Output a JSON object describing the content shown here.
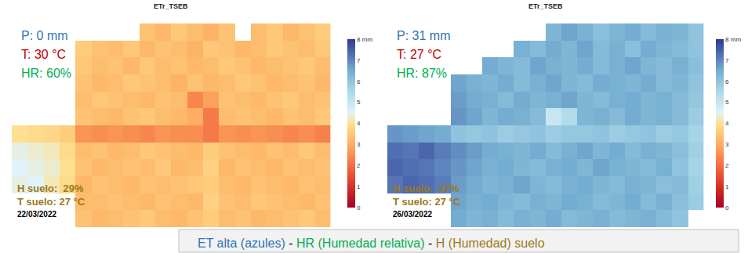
{
  "chart_data": [
    {
      "type": "heatmap",
      "title": "ETr_TSEB",
      "tick_labels": false,
      "zlim": [
        0,
        8
      ],
      "zticks": [
        0,
        1,
        2,
        3,
        4,
        5,
        6,
        7,
        {
          "value": 8,
          "label": "8 mm"
        }
      ],
      "annotations": [
        {
          "text": "P: 0 mm",
          "color": "#2e75b6"
        },
        {
          "text": "T: 30 °C",
          "color": "#c00000"
        },
        {
          "text": "HR: 60%",
          "color": "#00b050"
        },
        {
          "text": "H suelo:  29%",
          "color": "#9c7a1a"
        },
        {
          "text": "T suelo: 27 °C",
          "color": "#9c7a1a"
        },
        {
          "text": "22/03/2022",
          "color": "#000000"
        }
      ],
      "z": [
        [
          null,
          null,
          null,
          null,
          null,
          null,
          null,
          null,
          3.4,
          3.2,
          3.5,
          3.3,
          3.1,
          3.4,
          null,
          3.3,
          3.5,
          3.2,
          3.4,
          3.6
        ],
        [
          null,
          null,
          null,
          null,
          3.6,
          3.4,
          3.3,
          3.5,
          3.2,
          3.4,
          3.3,
          3.1,
          3.5,
          3.4,
          3.2,
          3.3,
          3.5,
          3.4,
          3.3,
          3.5
        ],
        [
          null,
          null,
          null,
          null,
          3.5,
          3.3,
          3.4,
          3.2,
          3.5,
          3.3,
          3.4,
          3.2,
          3.3,
          3.5,
          3.4,
          3.2,
          3.3,
          3.4,
          3.5,
          3.3
        ],
        [
          null,
          null,
          null,
          null,
          3.4,
          3.2,
          3.3,
          3.5,
          3.4,
          3.3,
          3.1,
          3.4,
          3.2,
          3.3,
          3.5,
          3.4,
          3.2,
          3.3,
          3.4,
          3.2
        ],
        [
          null,
          null,
          null,
          null,
          3.3,
          3.5,
          3.4,
          3.3,
          3.2,
          3.4,
          3.3,
          2.4,
          2.8,
          3.4,
          3.3,
          3.2,
          3.4,
          3.5,
          3.3,
          3.4
        ],
        [
          null,
          null,
          null,
          null,
          3.4,
          3.3,
          3.2,
          3.4,
          3.5,
          3.3,
          3.2,
          3.0,
          2.2,
          3.3,
          3.4,
          3.3,
          3.2,
          3.4,
          3.3,
          3.5
        ],
        [
          4.0,
          3.9,
          3.8,
          3.6,
          2.6,
          2.5,
          2.6,
          2.5,
          2.4,
          2.6,
          2.5,
          2.5,
          2.2,
          2.6,
          2.5,
          2.6,
          2.5,
          2.4,
          2.5,
          2.3
        ],
        [
          4.4,
          4.3,
          4.2,
          3.9,
          3.3,
          3.4,
          3.2,
          3.3,
          3.5,
          3.4,
          3.3,
          3.2,
          3.6,
          3.4,
          3.3,
          3.2,
          3.4,
          3.3,
          3.5,
          3.3
        ],
        [
          4.5,
          4.4,
          4.3,
          4.0,
          3.4,
          3.2,
          3.3,
          3.4,
          3.3,
          3.5,
          3.2,
          3.3,
          3.7,
          3.2,
          3.4,
          3.3,
          3.2,
          3.4,
          3.3,
          3.4
        ],
        [
          4.4,
          4.5,
          4.2,
          3.9,
          3.2,
          3.4,
          3.3,
          3.2,
          3.4,
          3.3,
          3.4,
          3.5,
          3.6,
          3.3,
          3.2,
          3.4,
          3.3,
          3.2,
          3.4,
          3.3
        ],
        [
          null,
          null,
          null,
          null,
          3.3,
          3.3,
          3.4,
          3.3,
          3.2,
          3.4,
          3.3,
          3.2,
          3.7,
          3.4,
          3.3,
          3.5,
          3.4,
          3.3,
          3.2,
          3.4
        ],
        [
          null,
          null,
          null,
          null,
          3.4,
          3.2,
          3.3,
          3.4,
          3.5,
          3.3,
          3.2,
          3.4,
          3.6,
          3.3,
          3.4,
          3.2,
          3.3,
          3.4,
          3.5,
          3.3
        ]
      ]
    },
    {
      "type": "heatmap",
      "title": "ETr_TSEB",
      "tick_labels": false,
      "zlim": [
        0,
        8
      ],
      "zticks": [
        0,
        1,
        2,
        3,
        4,
        5,
        6,
        7,
        {
          "value": 8,
          "label": "8 mm"
        }
      ],
      "annotations": [
        {
          "text": "P: 31 mm",
          "color": "#2e75b6"
        },
        {
          "text": "T: 27 °C",
          "color": "#c00000"
        },
        {
          "text": "HR: 87%",
          "color": "#00b050"
        },
        {
          "text": "H suelo:  27%",
          "color": "#9c7a1a"
        },
        {
          "text": "T suelo: 27 °C",
          "color": "#9c7a1a"
        },
        {
          "text": "26/03/2022",
          "color": "#000000"
        }
      ],
      "z": [
        [
          null,
          null,
          null,
          null,
          null,
          null,
          null,
          null,
          null,
          null,
          6.3,
          6.6,
          6.4,
          6.1,
          6.3,
          6.5,
          6.2,
          6.4,
          6.3,
          6.0
        ],
        [
          null,
          null,
          null,
          null,
          null,
          null,
          null,
          null,
          6.4,
          6.2,
          6.5,
          6.3,
          6.6,
          6.2,
          6.4,
          6.1,
          6.5,
          6.3,
          6.2,
          6.0
        ],
        [
          null,
          null,
          null,
          null,
          null,
          null,
          6.5,
          6.3,
          6.2,
          6.6,
          6.4,
          6.3,
          6.5,
          6.2,
          6.4,
          6.6,
          6.3,
          6.2,
          6.4,
          6.1
        ],
        [
          null,
          null,
          null,
          null,
          6.6,
          6.4,
          6.3,
          6.5,
          6.2,
          6.4,
          6.6,
          6.3,
          6.2,
          6.5,
          6.4,
          6.3,
          6.5,
          6.2,
          6.3,
          6.0
        ],
        [
          null,
          null,
          null,
          null,
          6.7,
          6.5,
          6.4,
          6.2,
          6.5,
          6.3,
          6.4,
          6.6,
          6.3,
          6.2,
          6.4,
          6.5,
          6.3,
          6.4,
          6.2,
          5.9
        ],
        [
          null,
          null,
          null,
          null,
          6.8,
          6.6,
          6.3,
          6.5,
          6.4,
          6.2,
          5.0,
          5.4,
          6.3,
          6.4,
          6.2,
          6.5,
          6.3,
          6.4,
          6.2,
          5.8
        ],
        [
          6.8,
          6.7,
          6.6,
          6.5,
          6.0,
          5.9,
          6.0,
          5.8,
          5.9,
          6.0,
          5.8,
          5.9,
          5.9,
          6.0,
          5.8,
          5.9,
          6.0,
          5.8,
          5.9,
          5.6
        ],
        [
          7.3,
          7.2,
          7.4,
          7.1,
          6.9,
          6.7,
          6.5,
          6.4,
          6.3,
          6.5,
          6.2,
          6.4,
          6.6,
          6.3,
          6.5,
          6.2,
          6.4,
          6.3,
          6.1,
          5.7
        ],
        [
          7.4,
          7.3,
          7.2,
          7.0,
          6.8,
          6.6,
          6.4,
          6.5,
          6.3,
          6.2,
          6.4,
          6.5,
          6.3,
          6.6,
          6.4,
          6.3,
          6.2,
          6.4,
          6.0,
          5.6
        ],
        [
          7.2,
          7.4,
          7.3,
          7.1,
          6.7,
          6.5,
          6.3,
          6.4,
          6.6,
          6.3,
          6.2,
          6.4,
          6.5,
          6.3,
          6.2,
          6.4,
          6.3,
          6.1,
          6.2,
          5.7
        ],
        [
          null,
          null,
          null,
          null,
          6.6,
          6.4,
          6.5,
          6.3,
          6.2,
          6.4,
          6.3,
          6.5,
          6.4,
          6.2,
          6.3,
          6.5,
          6.2,
          6.4,
          6.1,
          5.8
        ],
        [
          null,
          null,
          null,
          null,
          6.5,
          6.3,
          6.4,
          6.2,
          6.4,
          6.3,
          6.5,
          6.2,
          6.3,
          6.4,
          6.2,
          6.3,
          6.4,
          6.2,
          6.0,
          null
        ]
      ]
    }
  ],
  "footer": {
    "segments": [
      {
        "text": "ET alta (azules)",
        "color": "#2e75b6"
      },
      {
        "text": " - ",
        "color": "#000000"
      },
      {
        "text": "HR (Humedad relativa)",
        "color": "#00b050"
      },
      {
        "text": " - ",
        "color": "#000000"
      },
      {
        "text": "H (Humedad) suelo",
        "color": "#9c7a1a"
      }
    ]
  }
}
